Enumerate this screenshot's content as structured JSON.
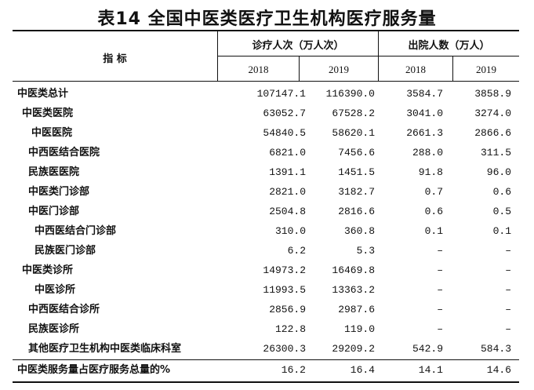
{
  "title": "表14   全国中医类医疗卫生机构医疗服务量",
  "header": {
    "indicator": "指  标",
    "group1": "诊疗人次（万人次）",
    "group2": "出院人数（万人）",
    "years": [
      "2018",
      "2019",
      "2018",
      "2019"
    ]
  },
  "rows": [
    {
      "label": "中医类总计",
      "values": [
        "107147.1",
        "116390.0",
        "3584.7",
        "3858.9"
      ]
    },
    {
      "label": "中医类医院",
      "values": [
        "63052.7",
        "67528.2",
        "3041.0",
        "3274.0"
      ]
    },
    {
      "label": "中医医院",
      "values": [
        "54840.5",
        "58620.1",
        "2661.3",
        "2866.6"
      ]
    },
    {
      "label": "中西医结合医院",
      "values": [
        "6821.0",
        "7456.6",
        "288.0",
        "311.5"
      ]
    },
    {
      "label": "民族医医院",
      "values": [
        "1391.1",
        "1451.5",
        "91.8",
        "96.0"
      ]
    },
    {
      "label": "中医类门诊部",
      "values": [
        "2821.0",
        "3182.7",
        "0.7",
        "0.6"
      ]
    },
    {
      "label": "中医门诊部",
      "values": [
        "2504.8",
        "2816.6",
        "0.6",
        "0.5"
      ]
    },
    {
      "label": "中西医结合门诊部",
      "values": [
        "310.0",
        "360.8",
        "0.1",
        "0.1"
      ]
    },
    {
      "label": "民族医门诊部",
      "values": [
        "6.2",
        "5.3",
        "–",
        "–"
      ]
    },
    {
      "label": "中医类诊所",
      "values": [
        "14973.2",
        "16469.8",
        "–",
        "–"
      ]
    },
    {
      "label": "中医诊所",
      "values": [
        "11993.5",
        "13363.2",
        "–",
        "–"
      ]
    },
    {
      "label": "中西医结合诊所",
      "values": [
        "2856.9",
        "2987.6",
        "–",
        "–"
      ]
    },
    {
      "label": "民族医诊所",
      "values": [
        "122.8",
        "119.0",
        "–",
        "–"
      ]
    },
    {
      "label": "其他医疗卫生机构中医类临床科室",
      "values": [
        "26300.3",
        "29209.2",
        "542.9",
        "584.3"
      ]
    },
    {
      "label": "中医类服务量占医疗服务总量的%",
      "values": [
        "16.2",
        "16.4",
        "14.1",
        "14.6"
      ]
    }
  ]
}
